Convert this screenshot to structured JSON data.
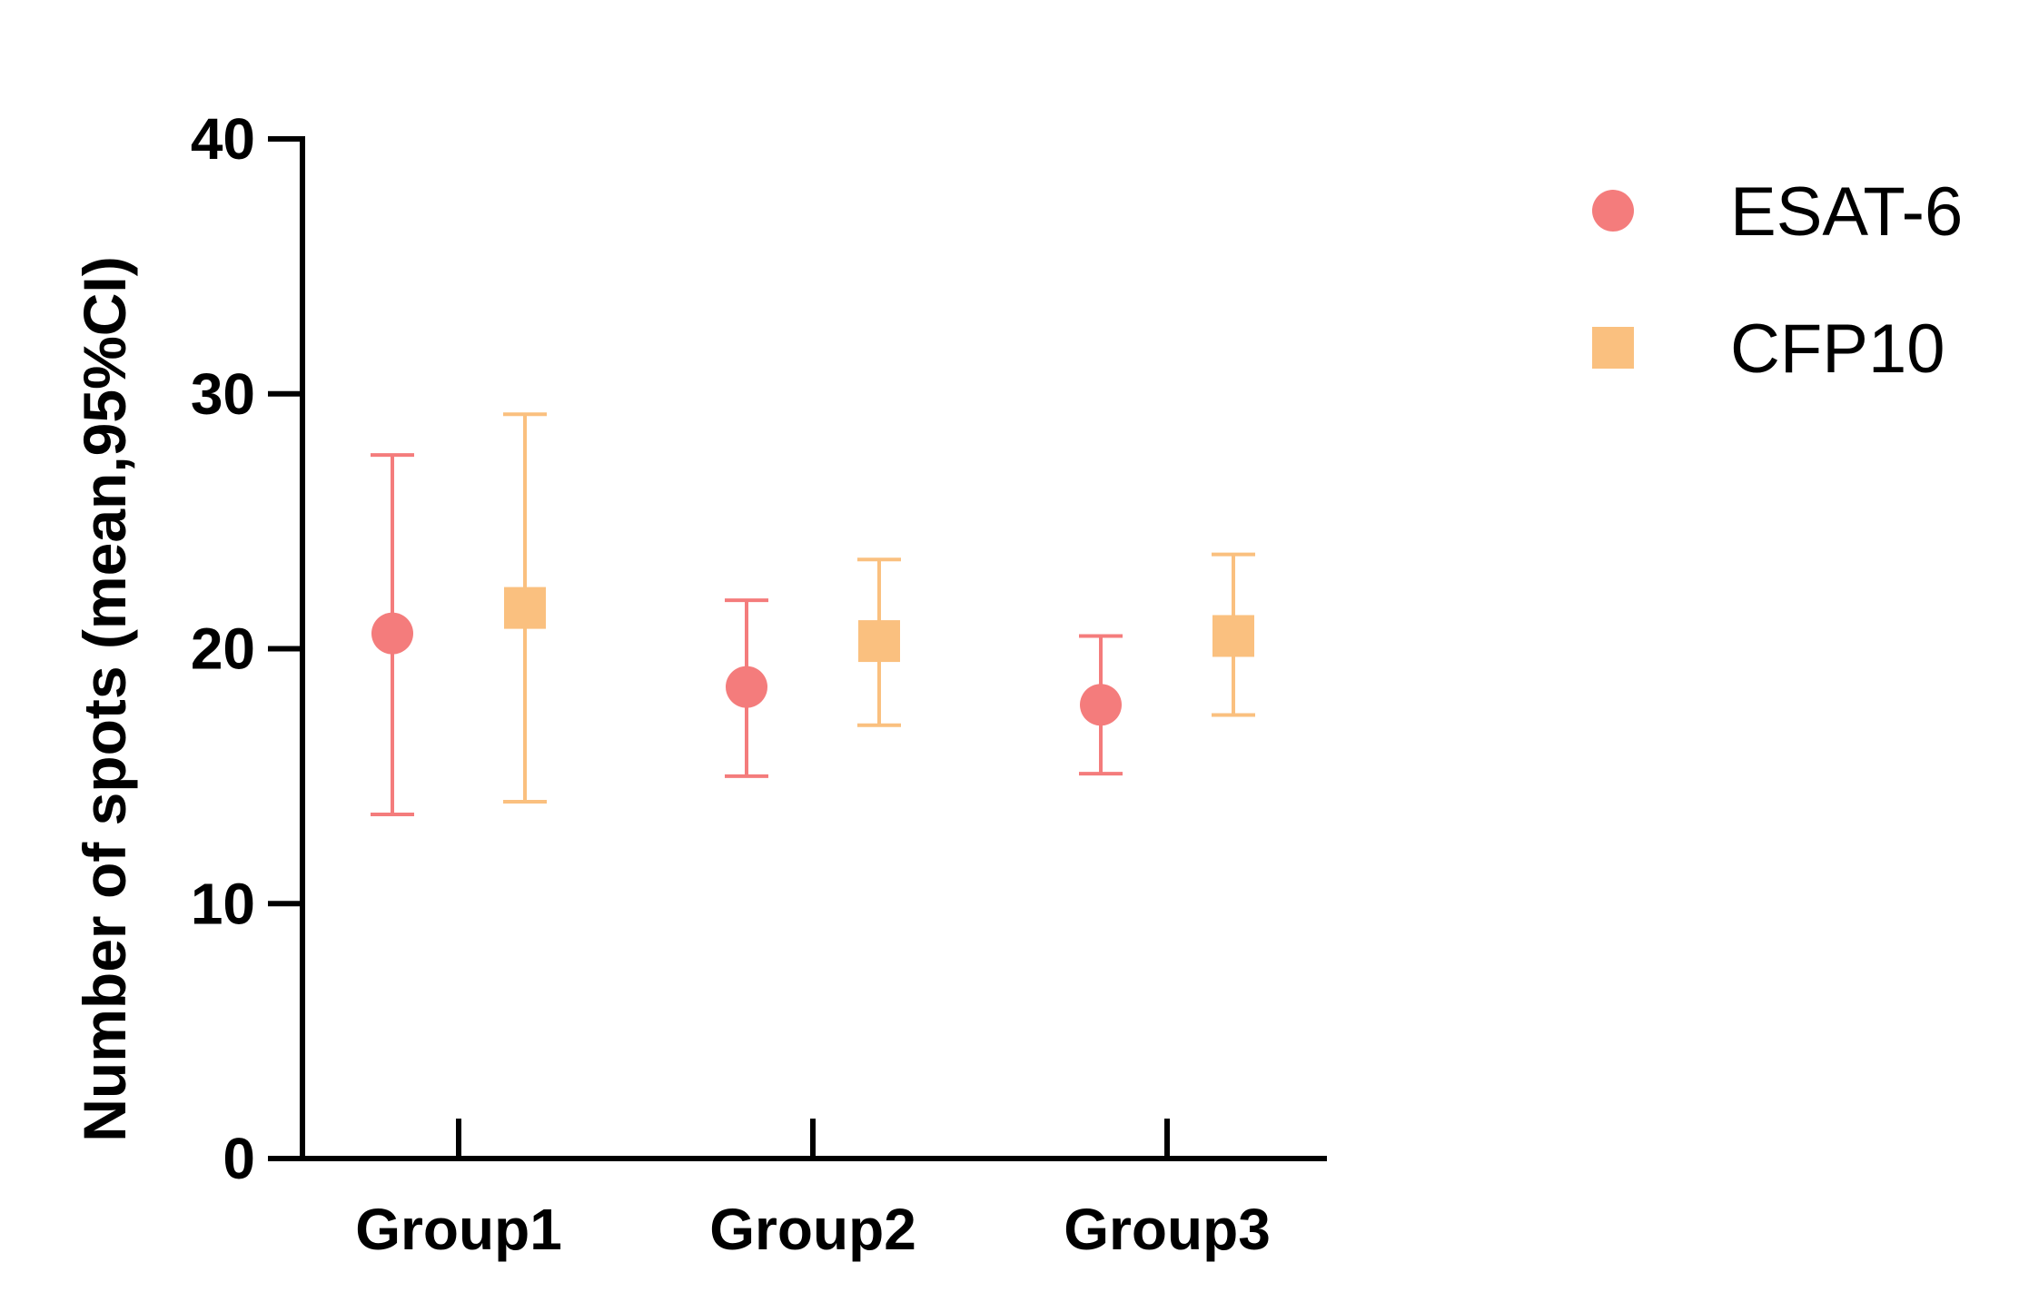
{
  "chart_data": {
    "type": "scatter",
    "categories": [
      "Group1",
      "Group2",
      "Group3"
    ],
    "ylabel": "Number of spots (mean,95%CI)",
    "xlabel": "",
    "ylim": [
      0,
      40
    ],
    "yticks": [
      0,
      10,
      20,
      30,
      40
    ],
    "grid": false,
    "legend_position": "top-right",
    "series": [
      {
        "name": "ESAT-6",
        "marker": "circle",
        "color": "#F47C7C",
        "values": [
          20.6,
          18.5,
          17.8
        ],
        "ci_low": [
          13.5,
          15.0,
          15.1
        ],
        "ci_high": [
          27.6,
          21.9,
          20.5
        ]
      },
      {
        "name": "CFP10",
        "marker": "square",
        "color": "#FAC07F",
        "values": [
          21.6,
          20.3,
          20.5
        ],
        "ci_low": [
          14.0,
          17.0,
          17.4
        ],
        "ci_high": [
          29.2,
          23.5,
          23.7
        ]
      }
    ]
  }
}
